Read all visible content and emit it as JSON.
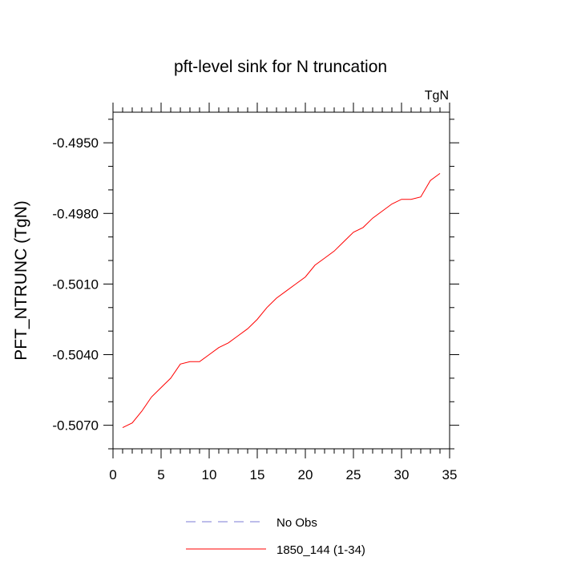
{
  "chart_data": {
    "type": "line",
    "title": "pft-level sink for N truncation",
    "units_label": "TgN",
    "ylabel": "PFT_NTRUNC  (TgN)",
    "xlabel": "",
    "xlim": [
      0,
      35
    ],
    "ylim": [
      -0.508,
      -0.4937
    ],
    "xticks": [
      0,
      5,
      10,
      15,
      20,
      25,
      30,
      35
    ],
    "xtick_labels": [
      "0",
      "5",
      "10",
      "15",
      "20",
      "25",
      "30",
      "35"
    ],
    "yticks": [
      -0.507,
      -0.504,
      -0.501,
      -0.498,
      -0.495
    ],
    "ytick_labels": [
      "-0.5070",
      "-0.5040",
      "-0.5010",
      "-0.4980",
      "-0.4950"
    ],
    "grid": false,
    "legend_position": "bottom",
    "series": [
      {
        "name": "No Obs",
        "color": "#7b7bd6",
        "style": "dashed",
        "x": [],
        "y": []
      },
      {
        "name": "1850_144 (1-34)",
        "color": "#ff0000",
        "style": "solid",
        "x": [
          1,
          2,
          3,
          4,
          5,
          6,
          7,
          8,
          9,
          10,
          11,
          12,
          13,
          14,
          15,
          16,
          17,
          18,
          19,
          20,
          21,
          22,
          23,
          24,
          25,
          26,
          27,
          28,
          29,
          30,
          31,
          32,
          33,
          34
        ],
        "y": [
          -0.5071,
          -0.5069,
          -0.5064,
          -0.5058,
          -0.5054,
          -0.505,
          -0.5044,
          -0.5043,
          -0.5043,
          -0.504,
          -0.5037,
          -0.5035,
          -0.5032,
          -0.5029,
          -0.5025,
          -0.502,
          -0.5016,
          -0.5013,
          -0.501,
          -0.5007,
          -0.5002,
          -0.4999,
          -0.4996,
          -0.4992,
          -0.4988,
          -0.4986,
          -0.4982,
          -0.4979,
          -0.4976,
          -0.4974,
          -0.4974,
          -0.4973,
          -0.4966,
          -0.4963
        ]
      }
    ]
  }
}
